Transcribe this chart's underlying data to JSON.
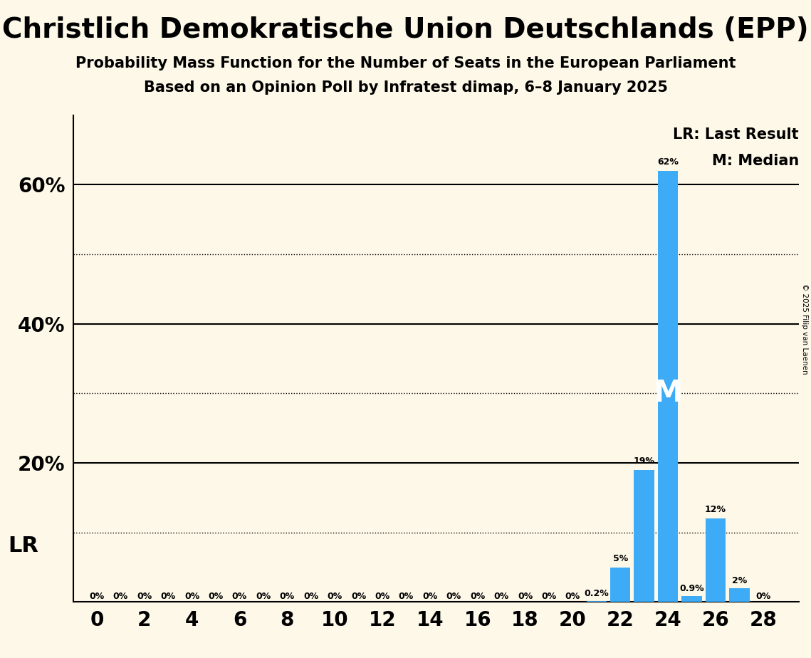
{
  "title": "Christlich Demokratische Union Deutschlands (EPP)",
  "subtitle1": "Probability Mass Function for the Number of Seats in the European Parliament",
  "subtitle2": "Based on an Opinion Poll by Infratest dimap, 6–8 January 2025",
  "copyright": "© 2025 Filip van Laenen",
  "background_color": "#fdf8e8",
  "bar_color": "#3dabf5",
  "seats": [
    0,
    1,
    2,
    3,
    4,
    5,
    6,
    7,
    8,
    9,
    10,
    11,
    12,
    13,
    14,
    15,
    16,
    17,
    18,
    19,
    20,
    21,
    22,
    23,
    24,
    25,
    26,
    27,
    28
  ],
  "probabilities": [
    0.0,
    0.0,
    0.0,
    0.0,
    0.0,
    0.0,
    0.0,
    0.0,
    0.0,
    0.0,
    0.0,
    0.0,
    0.0,
    0.0,
    0.0,
    0.0,
    0.0,
    0.0,
    0.0,
    0.0,
    0.0,
    0.2,
    5.0,
    19.0,
    62.0,
    0.9,
    12.0,
    2.0,
    0.0
  ],
  "labels": [
    "0%",
    "0%",
    "0%",
    "0%",
    "0%",
    "0%",
    "0%",
    "0%",
    "0%",
    "0%",
    "0%",
    "0%",
    "0%",
    "0%",
    "0%",
    "0%",
    "0%",
    "0%",
    "0%",
    "0%",
    "0%",
    "0.2%",
    "5%",
    "19%",
    "62%",
    "0.9%",
    "12%",
    "2%",
    "0%"
  ],
  "median_seat": 24,
  "lr_seat": 23,
  "ylim_max": 70,
  "solid_yticks": [
    20,
    40,
    60
  ],
  "dotted_yticks": [
    10,
    30,
    50
  ],
  "xtick_positions": [
    0,
    2,
    4,
    6,
    8,
    10,
    12,
    14,
    16,
    18,
    20,
    22,
    24,
    26,
    28
  ],
  "lr_label": "LR: Last Result",
  "m_label": "M: Median",
  "lr_annotation": "LR",
  "m_annotation": "M",
  "title_fontsize": 28,
  "subtitle_fontsize": 15,
  "tick_fontsize": 20,
  "label_fontsize": 9,
  "annotation_fontsize": 14
}
